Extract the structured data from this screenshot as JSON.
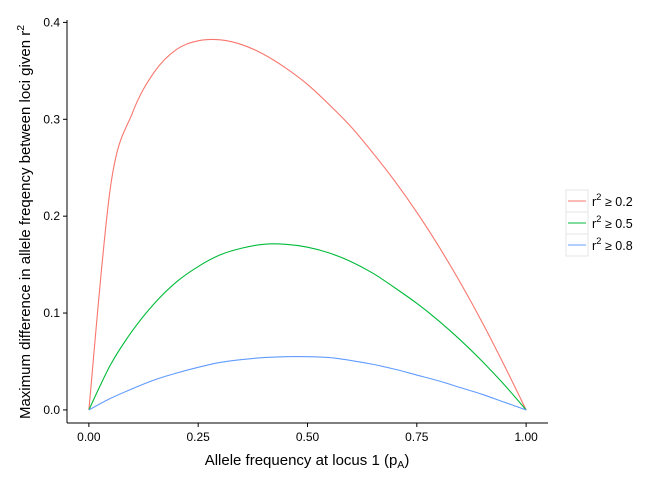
{
  "chart_data": {
    "type": "line",
    "title": "",
    "xlabel": "Allele frequency at locus 1 (p",
    "xlabel_sub": "A",
    "xlabel_end": ")",
    "ylabel": "Maximum difference in allele freqency between loci given r",
    "ylabel_sup": "2",
    "xlim": [
      -0.05,
      1.05
    ],
    "ylim": [
      -0.0135,
      0.4025
    ],
    "x_ticks": [
      0.0,
      0.25,
      0.5,
      0.75,
      1.0
    ],
    "x_tick_labels": [
      "0.00",
      "0.25",
      "0.50",
      "0.75",
      "1.00"
    ],
    "y_ticks": [
      0.0,
      0.1,
      0.2,
      0.3,
      0.4
    ],
    "y_tick_labels": [
      "0.0",
      "0.1",
      "0.2",
      "0.3",
      "0.4"
    ],
    "grid": false,
    "legend_position": "right",
    "x": [
      0.0,
      0.05,
      0.1,
      0.15,
      0.2,
      0.25,
      0.3,
      0.35,
      0.4,
      0.45,
      0.5,
      0.55,
      0.6,
      0.65,
      0.7,
      0.75,
      0.8,
      0.85,
      0.9,
      0.95,
      1.0
    ],
    "series": [
      {
        "name": "r",
        "sup": "2",
        "rel": " ≥ 0.2",
        "color": "#F8766D",
        "values": [
          0.0,
          0.232,
          0.307,
          0.349,
          0.372,
          0.381,
          0.382,
          0.377,
          0.367,
          0.353,
          0.336,
          0.315,
          0.292,
          0.265,
          0.236,
          0.204,
          0.169,
          0.131,
          0.09,
          0.046,
          0.0
        ]
      },
      {
        "name": "r",
        "sup": "2",
        "rel": " ≥ 0.5",
        "color": "#00BA38",
        "values": [
          0.0,
          0.047,
          0.082,
          0.11,
          0.132,
          0.148,
          0.16,
          0.167,
          0.171,
          0.171,
          0.168,
          0.162,
          0.153,
          0.141,
          0.126,
          0.11,
          0.092,
          0.072,
          0.05,
          0.026,
          0.0
        ]
      },
      {
        "name": "r",
        "sup": "2",
        "rel": " ≥ 0.8",
        "color": "#619CFF",
        "values": [
          0.0,
          0.012,
          0.022,
          0.031,
          0.038,
          0.044,
          0.049,
          0.052,
          0.054,
          0.055,
          0.055,
          0.054,
          0.051,
          0.047,
          0.042,
          0.036,
          0.03,
          0.023,
          0.016,
          0.008,
          0.0
        ]
      }
    ]
  }
}
